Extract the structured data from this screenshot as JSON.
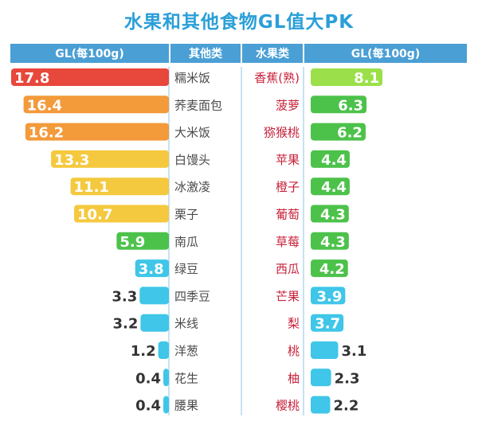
{
  "title": "水果和其他食物GL值大PK",
  "headers": {
    "left_value": "GL(每100g)",
    "left_food": "其他类",
    "right_food": "水果类",
    "right_value": "GL(每100g)"
  },
  "colors": {
    "title": "#2a9fd8",
    "header": "#4a9fd5",
    "separator": "#8fc6e8",
    "left_label": "#4a4a4a",
    "right_label": "#c7213a",
    "red": "#e8473c",
    "orange": "#f39a3a",
    "yellow": "#f5c93f",
    "green": "#4cc24a",
    "lime": "#9be04a",
    "cyan": "#3fc6e8"
  },
  "chart_data": [
    {
      "type": "bar",
      "orientation": "horizontal",
      "title": "其他类",
      "xlabel": "GL(每100g)",
      "xlim": [
        0,
        17.8
      ],
      "categories": [
        "糯米饭",
        "荞麦面包",
        "大米饭",
        "白馒头",
        "冰激凌",
        "栗子",
        "南瓜",
        "绿豆",
        "四季豆",
        "米线",
        "洋葱",
        "花生",
        "腰果"
      ],
      "values": [
        17.8,
        16.4,
        16.2,
        13.3,
        11.1,
        10.7,
        5.9,
        3.8,
        3.3,
        3.2,
        1.2,
        0.4,
        0.4
      ],
      "value_labels": [
        "17.8",
        "16.4",
        "16.2",
        "13.3",
        "11.1",
        "10.7",
        "5.9",
        "3.8",
        "3.3",
        "3.2",
        "1.2",
        "0.4",
        "0.4"
      ],
      "bar_colors": [
        "#e8473c",
        "#f39a3a",
        "#f39a3a",
        "#f5c93f",
        "#f5c93f",
        "#f5c93f",
        "#4cc24a",
        "#3fc6e8",
        "#3fc6e8",
        "#3fc6e8",
        "#3fc6e8",
        "#3fc6e8",
        "#3fc6e8"
      ]
    },
    {
      "type": "bar",
      "orientation": "horizontal",
      "title": "水果类",
      "xlabel": "GL(每100g)",
      "xlim": [
        0,
        17.8
      ],
      "categories": [
        "香蕉(熟)",
        "菠萝",
        "猕猴桃",
        "苹果",
        "橙子",
        "葡萄",
        "草莓",
        "西瓜",
        "芒果",
        "梨",
        "桃",
        "柚",
        "樱桃"
      ],
      "values": [
        8.1,
        6.3,
        6.2,
        4.4,
        4.4,
        4.3,
        4.3,
        4.2,
        3.9,
        3.7,
        3.1,
        2.3,
        2.2
      ],
      "value_labels": [
        "8.1",
        "6.3",
        "6.2",
        "4.4",
        "4.4",
        "4.3",
        "4.3",
        "4.2",
        "3.9",
        "3.7",
        "3.1",
        "2.3",
        "2.2"
      ],
      "bar_colors": [
        "#9be04a",
        "#4cc24a",
        "#4cc24a",
        "#4cc24a",
        "#4cc24a",
        "#4cc24a",
        "#4cc24a",
        "#4cc24a",
        "#3fc6e8",
        "#3fc6e8",
        "#3fc6e8",
        "#3fc6e8",
        "#3fc6e8"
      ]
    }
  ]
}
